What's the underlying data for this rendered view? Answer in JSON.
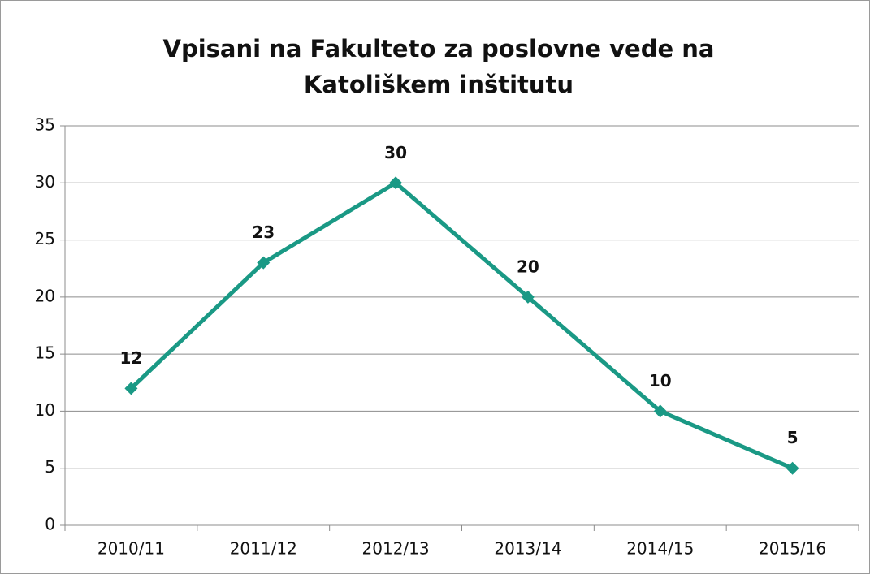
{
  "chart_data": {
    "type": "line",
    "title": "Vpisani na Fakulteto za poslovne vede na Katoliškem inštitutu",
    "categories": [
      "2010/11",
      "2011/12",
      "2012/13",
      "2013/14",
      "2014/15",
      "2015/16"
    ],
    "values": [
      12,
      23,
      30,
      20,
      10,
      5
    ],
    "color": "#1a9985",
    "ylim": [
      0,
      35
    ],
    "yticks": [
      0,
      5,
      10,
      15,
      20,
      25,
      30,
      35
    ],
    "grid": true
  }
}
